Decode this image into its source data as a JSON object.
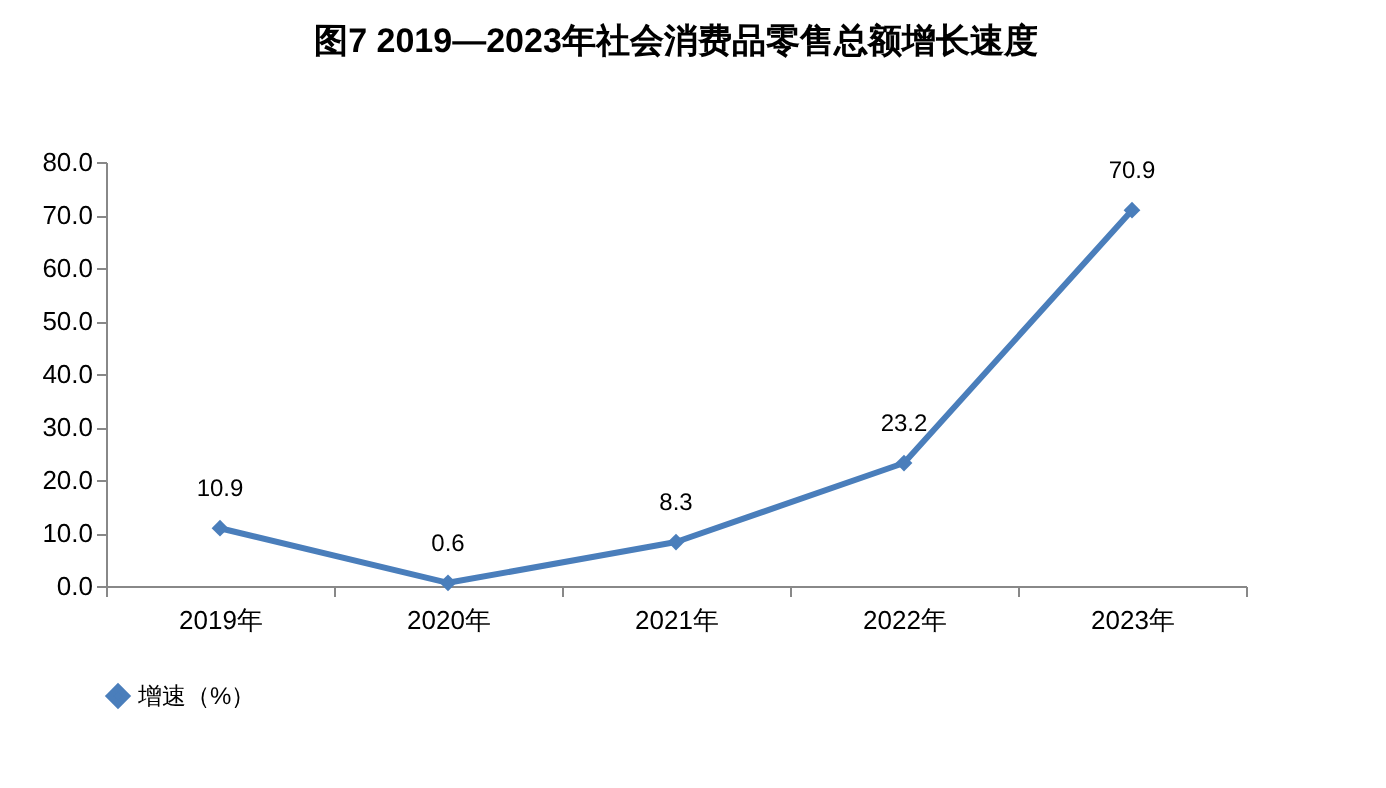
{
  "chart_data": {
    "type": "line",
    "title": "图7      2019—2023年社会消费品零售总额增长速度",
    "categories": [
      "2019年",
      "2020年",
      "2021年",
      "2022年",
      "2023年"
    ],
    "series": [
      {
        "name": "增速（%）",
        "color": "#4a7ebb",
        "values": [
          10.9,
          0.6,
          8.3,
          23.2,
          70.9
        ]
      }
    ],
    "ylim": [
      0,
      80
    ],
    "yticks": [
      {
        "value": 0,
        "label": "0.0"
      },
      {
        "value": 10,
        "label": "10.0"
      },
      {
        "value": 20,
        "label": "20.0"
      },
      {
        "value": 30,
        "label": "30.0"
      },
      {
        "value": 40,
        "label": "40.0"
      },
      {
        "value": 50,
        "label": "50.0"
      },
      {
        "value": 60,
        "label": "60.0"
      },
      {
        "value": 70,
        "label": "70.0"
      },
      {
        "value": 80,
        "label": "80.0"
      }
    ],
    "data_labels": true,
    "marker": "diamond",
    "line_style": "solid",
    "grid": false,
    "legend": "bottom"
  }
}
